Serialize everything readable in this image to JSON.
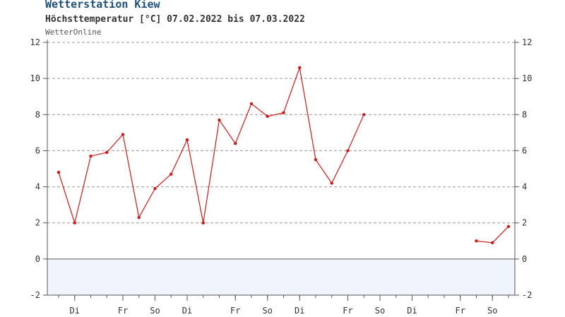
{
  "header": {
    "title": "Wetterstation Kiew",
    "subtitle": "Höchsttemperatur [°C] 07.02.2022 bis 07.03.2022",
    "source": "WetterOnline"
  },
  "chart_data": {
    "type": "line",
    "title": "Wetterstation Kiew",
    "subtitle": "Höchsttemperatur [°C] 07.02.2022 bis 07.03.2022",
    "ylim": [
      -2,
      12
    ],
    "y_ticks": [
      12,
      10,
      8,
      6,
      4,
      2,
      0,
      -2
    ],
    "grid": true,
    "x": [
      0,
      1,
      2,
      3,
      4,
      5,
      6,
      7,
      8,
      9,
      10,
      11,
      12,
      13,
      14,
      15,
      16,
      17,
      18,
      19,
      20,
      21,
      22,
      23,
      24,
      25,
      26,
      27,
      28
    ],
    "x_tick_labels": [
      {
        "x": 1,
        "label": "Di"
      },
      {
        "x": 4,
        "label": "Fr"
      },
      {
        "x": 6,
        "label": "So"
      },
      {
        "x": 8,
        "label": "Di"
      },
      {
        "x": 11,
        "label": "Fr"
      },
      {
        "x": 13,
        "label": "So"
      },
      {
        "x": 15,
        "label": "Di"
      },
      {
        "x": 18,
        "label": "Fr"
      },
      {
        "x": 20,
        "label": "So"
      },
      {
        "x": 22,
        "label": "Di"
      },
      {
        "x": 25,
        "label": "Fr"
      },
      {
        "x": 27,
        "label": "So"
      }
    ],
    "series": [
      {
        "color": "#cc1a1a",
        "values": [
          4.8,
          2.0,
          5.7,
          5.9,
          6.9,
          2.3,
          3.9,
          4.7,
          6.6,
          2.0,
          7.7,
          6.4,
          8.6,
          7.9,
          8.1,
          10.6,
          5.5,
          4.2,
          6.0,
          8.0,
          null,
          null,
          null,
          null,
          null,
          null,
          1.0,
          0.9,
          1.8
        ]
      }
    ],
    "colors": {
      "line": "#cc1a1a",
      "below_zero_fill": "#f0f4fc",
      "grid": "#999999"
    }
  }
}
